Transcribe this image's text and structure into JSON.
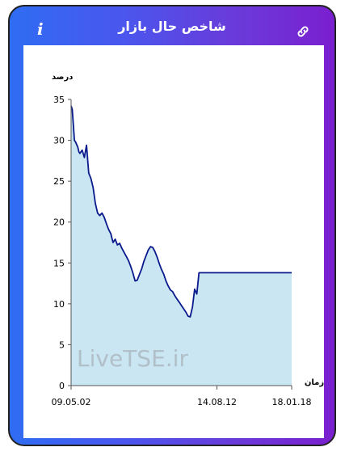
{
  "header": {
    "title": "شاخص حال بازار",
    "info_icon": "info-icon",
    "link_icon": "link-icon"
  },
  "watermark": "LiveTSE.ir",
  "chart_data": {
    "type": "area",
    "ylabel": "درصد",
    "xlabel": "زمان",
    "ylim": [
      0,
      35
    ],
    "yticks": [
      0,
      5,
      10,
      15,
      20,
      25,
      30,
      35
    ],
    "xticks": [
      "09.05.02",
      "14.08.12",
      "18.01.18"
    ],
    "colors": {
      "line": "#0a1a8c",
      "fill": "#c9e6f2"
    },
    "x": [
      0,
      0.5,
      1,
      1.5,
      2,
      2.5,
      3,
      3.5,
      4,
      5,
      6,
      7,
      8,
      9,
      10,
      11,
      12,
      13,
      14,
      15,
      16,
      17,
      18,
      19,
      20,
      21,
      22,
      23,
      24,
      25,
      26,
      27,
      28,
      29,
      30,
      31,
      32,
      33,
      34,
      35,
      36,
      37,
      38,
      39,
      40,
      41,
      42,
      43,
      44,
      45,
      46,
      47,
      48,
      49,
      50,
      51,
      52,
      53,
      54,
      55,
      56,
      57,
      58,
      59,
      60,
      61,
      62,
      63,
      64,
      65,
      66,
      67,
      68,
      69,
      70,
      71,
      72,
      73,
      74,
      75,
      76,
      77,
      78,
      79,
      80,
      81,
      82,
      83,
      84,
      85,
      86,
      87,
      88,
      89,
      90,
      91,
      92,
      93,
      94,
      95,
      96,
      97,
      98,
      99,
      100
    ],
    "values": [
      34.2,
      33.8,
      32.0,
      30.0,
      29.8,
      29.5,
      29.2,
      28.6,
      28.4,
      28.8,
      27.9,
      29.4,
      26.0,
      25.3,
      24.2,
      22.3,
      21.1,
      20.8,
      21.1,
      20.6,
      19.8,
      19.1,
      18.6,
      17.5,
      17.9,
      17.2,
      17.4,
      16.8,
      16.3,
      15.8,
      15.3,
      14.6,
      13.8,
      12.8,
      12.9,
      13.6,
      14.3,
      15.2,
      15.9,
      16.6,
      17.0,
      16.9,
      16.4,
      15.7,
      14.9,
      14.2,
      13.6,
      12.8,
      12.2,
      11.7,
      11.5,
      11.0,
      10.6,
      10.2,
      9.8,
      9.4,
      9.0,
      8.5,
      8.4,
      9.6,
      11.8,
      11.2,
      13.8,
      13.8,
      13.8,
      13.8,
      13.8,
      13.8,
      13.8,
      13.8,
      13.8,
      13.8,
      13.8,
      13.8,
      13.8,
      13.8,
      13.8,
      13.8,
      13.8,
      13.8,
      13.8,
      13.8,
      13.8,
      13.8,
      13.8,
      13.8,
      13.8,
      13.8,
      13.8,
      13.8,
      13.8,
      13.8,
      13.8,
      13.8,
      13.8,
      13.8,
      13.8,
      13.8,
      13.8,
      13.8,
      13.8,
      13.8,
      13.8,
      13.8,
      13.8
    ]
  }
}
